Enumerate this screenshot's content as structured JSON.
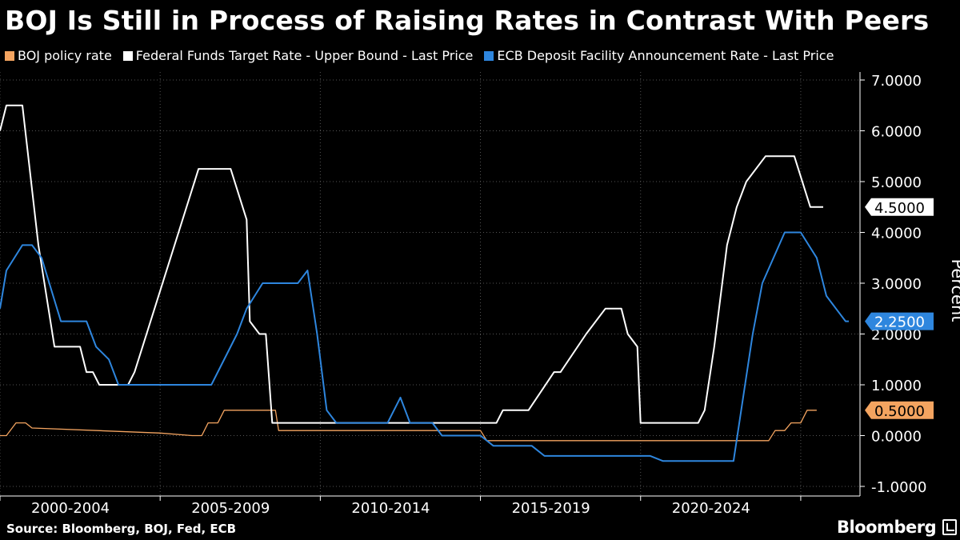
{
  "chart_data": {
    "type": "line",
    "title": "BOJ Is Still in Process of Raising Rates in Contrast With Peers",
    "ylabel": "Percent",
    "xlabel": "",
    "ylim": [
      -1,
      7
    ],
    "xlim": [
      1999.0,
      2025.85
    ],
    "yticks": [
      "7.0000",
      "6.0000",
      "5.0000",
      "4.0000",
      "3.0000",
      "2.0000",
      "1.0000",
      "0.0000",
      "-1.0000"
    ],
    "ytick_values": [
      7,
      6,
      5,
      4,
      3,
      2,
      1,
      0,
      -1
    ],
    "xtick_labels": [
      "2000-2004",
      "2005-2009",
      "2010-2014",
      "2015-2019",
      "2020-2024"
    ],
    "xtick_centers": [
      2001.2,
      2006.2,
      2011.2,
      2016.2,
      2021.2
    ],
    "x_separators": [
      1999.0,
      2004.0,
      2009.0,
      2014.0,
      2019.0,
      2024.0
    ],
    "grid": true,
    "legend_position": "top-left",
    "series": [
      {
        "name": "BOJ policy rate",
        "color": "#f4a460",
        "last_label": "0.5000",
        "points": [
          [
            1999.0,
            0
          ],
          [
            1999.2,
            0
          ],
          [
            1999.5,
            0.25
          ],
          [
            1999.8,
            0.25
          ],
          [
            2000.0,
            0.15
          ],
          [
            2004.0,
            0.05
          ],
          [
            2005.0,
            0
          ],
          [
            2005.3,
            0
          ],
          [
            2005.5,
            0.25
          ],
          [
            2005.8,
            0.25
          ],
          [
            2006.0,
            0.5
          ],
          [
            2007.6,
            0.5
          ],
          [
            2007.7,
            0.1
          ],
          [
            2009.5,
            0.1
          ],
          [
            2014.0,
            0.1
          ],
          [
            2014.2,
            -0.1
          ],
          [
            2022.7,
            -0.1
          ],
          [
            2023.0,
            -0.1
          ],
          [
            2023.2,
            0.1
          ],
          [
            2023.5,
            0.1
          ],
          [
            2023.7,
            0.25
          ],
          [
            2024.0,
            0.25
          ],
          [
            2024.2,
            0.5
          ],
          [
            2024.5,
            0.5
          ]
        ]
      },
      {
        "name": "Federal Funds Target Rate - Upper Bound - Last Price",
        "color": "#ffffff",
        "last_label": "4.5000",
        "points": [
          [
            1999.0,
            6.0
          ],
          [
            1999.2,
            6.5
          ],
          [
            1999.7,
            6.5
          ],
          [
            2000.2,
            3.75
          ],
          [
            2000.7,
            1.75
          ],
          [
            2001.5,
            1.75
          ],
          [
            2001.7,
            1.25
          ],
          [
            2001.9,
            1.25
          ],
          [
            2002.1,
            1.0
          ],
          [
            2003.0,
            1.0
          ],
          [
            2003.2,
            1.25
          ],
          [
            2005.2,
            5.25
          ],
          [
            2006.2,
            5.25
          ],
          [
            2006.7,
            4.25
          ],
          [
            2006.8,
            2.25
          ],
          [
            2007.1,
            2.0
          ],
          [
            2007.3,
            2.0
          ],
          [
            2007.5,
            0.25
          ],
          [
            2014.5,
            0.25
          ],
          [
            2014.7,
            0.5
          ],
          [
            2015.5,
            0.5
          ],
          [
            2016.3,
            1.25
          ],
          [
            2016.5,
            1.25
          ],
          [
            2017.3,
            2.0
          ],
          [
            2017.9,
            2.5
          ],
          [
            2018.4,
            2.5
          ],
          [
            2018.6,
            2.0
          ],
          [
            2018.9,
            1.75
          ],
          [
            2019.0,
            0.25
          ],
          [
            2020.8,
            0.25
          ],
          [
            2021.0,
            0.5
          ],
          [
            2021.3,
            1.75
          ],
          [
            2021.7,
            3.75
          ],
          [
            2022.0,
            4.5
          ],
          [
            2022.3,
            5.0
          ],
          [
            2022.9,
            5.5
          ],
          [
            2023.8,
            5.5
          ],
          [
            2024.3,
            4.5
          ],
          [
            2024.7,
            4.5
          ]
        ]
      },
      {
        "name": "ECB Deposit Facility Announcement Rate - Last Price",
        "color": "#2e86de",
        "last_label": "2.2500",
        "points": [
          [
            1999.0,
            2.5
          ],
          [
            1999.2,
            3.25
          ],
          [
            1999.7,
            3.75
          ],
          [
            2000.0,
            3.75
          ],
          [
            2000.3,
            3.5
          ],
          [
            2000.9,
            2.25
          ],
          [
            2001.7,
            2.25
          ],
          [
            2002.0,
            1.75
          ],
          [
            2002.4,
            1.5
          ],
          [
            2002.7,
            1.0
          ],
          [
            2005.6,
            1.0
          ],
          [
            2006.4,
            2.0
          ],
          [
            2006.7,
            2.5
          ],
          [
            2007.2,
            3.0
          ],
          [
            2008.3,
            3.0
          ],
          [
            2008.6,
            3.25
          ],
          [
            2008.9,
            2.0
          ],
          [
            2009.2,
            0.5
          ],
          [
            2009.5,
            0.25
          ],
          [
            2011.1,
            0.25
          ],
          [
            2011.5,
            0.75
          ],
          [
            2011.8,
            0.25
          ],
          [
            2012.5,
            0.25
          ],
          [
            2012.8,
            0
          ],
          [
            2014.0,
            0
          ],
          [
            2014.4,
            -0.2
          ],
          [
            2015.6,
            -0.2
          ],
          [
            2016.0,
            -0.4
          ],
          [
            2019.3,
            -0.4
          ],
          [
            2019.7,
            -0.5
          ],
          [
            2021.9,
            -0.5
          ],
          [
            2022.2,
            0.75
          ],
          [
            2022.5,
            2.0
          ],
          [
            2022.8,
            3.0
          ],
          [
            2023.5,
            4.0
          ],
          [
            2024.0,
            4.0
          ],
          [
            2024.5,
            3.5
          ],
          [
            2024.8,
            2.75
          ],
          [
            2025.1,
            2.5
          ],
          [
            2025.4,
            2.25
          ],
          [
            2025.5,
            2.25
          ]
        ]
      }
    ]
  },
  "source": "Source: Bloomberg, BOJ, Fed, ECB",
  "brand": "Bloomberg"
}
